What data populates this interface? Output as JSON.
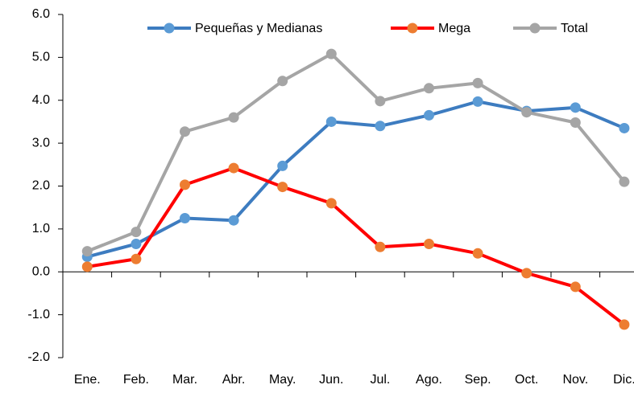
{
  "chart_data": {
    "type": "line",
    "categories": [
      "Ene.",
      "Feb.",
      "Mar.",
      "Abr.",
      "May.",
      "Jun.",
      "Jul.",
      "Ago.",
      "Sep.",
      "Oct.",
      "Nov.",
      "Dic."
    ],
    "series": [
      {
        "name": "Pequeñas y Medianas",
        "color": "#3d7cc0",
        "marker_color": "#5b9bd5",
        "values": [
          0.35,
          0.65,
          1.25,
          1.2,
          2.47,
          3.5,
          3.4,
          3.65,
          3.97,
          3.75,
          3.83,
          3.35
        ]
      },
      {
        "name": "Mega",
        "color": "#ff0000",
        "marker_color": "#ed7d31",
        "values": [
          0.12,
          0.3,
          2.03,
          2.42,
          1.98,
          1.6,
          0.58,
          0.65,
          0.43,
          -0.03,
          -0.35,
          -1.23
        ]
      },
      {
        "name": "Total",
        "color": "#a5a5a5",
        "marker_color": "#a5a5a5",
        "values": [
          0.48,
          0.93,
          3.27,
          3.6,
          4.45,
          5.08,
          3.98,
          4.28,
          4.4,
          3.72,
          3.48,
          2.1
        ]
      }
    ],
    "ylim": [
      -2,
      6
    ],
    "yticks": [
      {
        "value": -2,
        "label": "-2.0"
      },
      {
        "value": -1,
        "label": "-1.0"
      },
      {
        "value": 0,
        "label": "0.0"
      },
      {
        "value": 1,
        "label": "1.0"
      },
      {
        "value": 2,
        "label": "2.0"
      },
      {
        "value": 3,
        "label": "3.0"
      },
      {
        "value": 4,
        "label": "4.0"
      },
      {
        "value": 5,
        "label": "5.0"
      },
      {
        "value": 6,
        "label": "6.0"
      }
    ],
    "legend": "top",
    "grid": false
  }
}
